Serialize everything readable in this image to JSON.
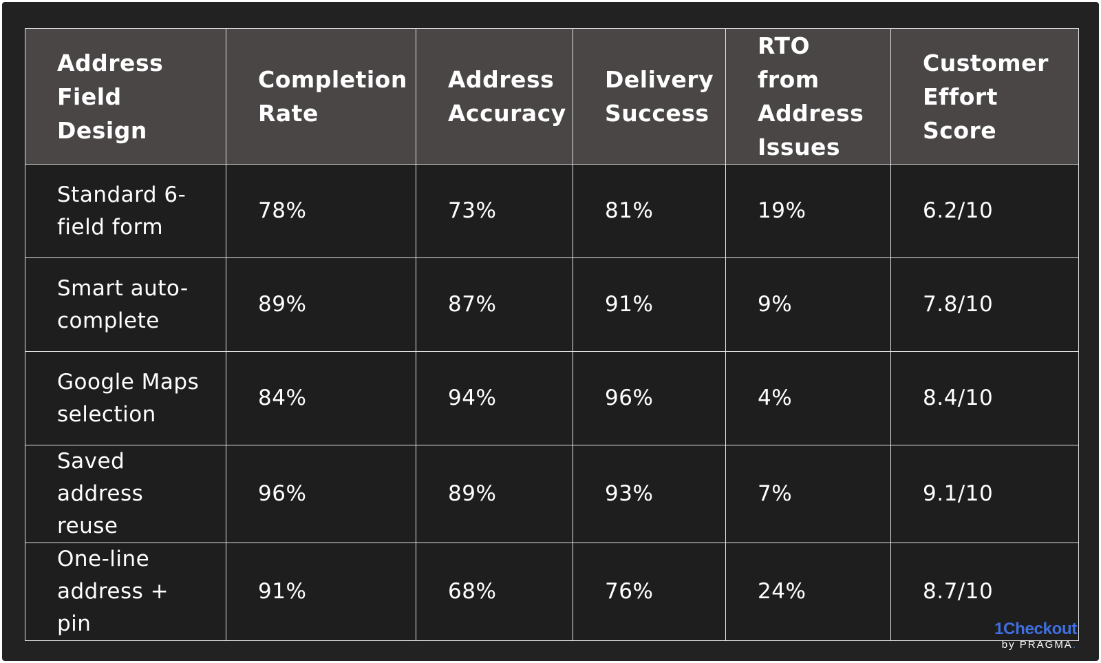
{
  "chart_data": {
    "type": "table",
    "columns": [
      "Address Field Design",
      "Completion Rate",
      "Address Accuracy",
      "Delivery Success",
      "RTO from Address Issues",
      "Customer Effort Score"
    ],
    "rows": [
      [
        "Standard 6-field form",
        "78%",
        "73%",
        "81%",
        "19%",
        "6.2/10"
      ],
      [
        "Smart auto-complete",
        "89%",
        "87%",
        "91%",
        "9%",
        "7.8/10"
      ],
      [
        "Google Maps selection",
        "84%",
        "94%",
        "96%",
        "4%",
        "8.4/10"
      ],
      [
        "Saved address reuse",
        "96%",
        "89%",
        "93%",
        "7%",
        "9.1/10"
      ],
      [
        "One-line address + pin",
        "91%",
        "68%",
        "76%",
        "24%",
        "8.7/10"
      ]
    ]
  },
  "brand": {
    "name": "1Checkout",
    "by": "by PRAGMA",
    "dot": ".",
    "accent_color": "#3f6fe0"
  }
}
